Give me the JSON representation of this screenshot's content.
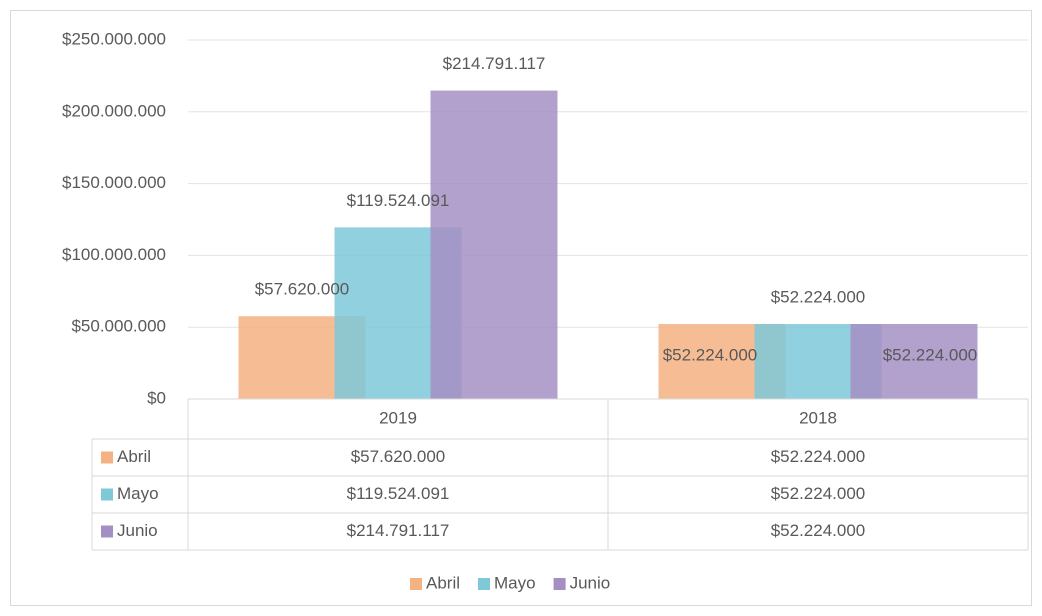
{
  "chart_data": {
    "type": "bar",
    "categories": [
      "2019",
      "2018"
    ],
    "series": [
      {
        "name": "Abril",
        "color": "#f4b183",
        "values": [
          57620000,
          52224000
        ],
        "value_labels": [
          "$57.620.000",
          "$52.224.000"
        ]
      },
      {
        "name": "Mayo",
        "color": "#7ec8d8",
        "values": [
          119524091,
          52224000
        ],
        "value_labels": [
          "$119.524.091",
          "$52.224.000"
        ]
      },
      {
        "name": "Junio",
        "color": "#a48fc4",
        "values": [
          214791117,
          52224000
        ],
        "value_labels": [
          "$214.791.117",
          "$52.224.000"
        ]
      }
    ],
    "ylim": [
      0,
      250000000
    ],
    "yticks": [
      {
        "value": 0,
        "label": "$0"
      },
      {
        "value": 50000000,
        "label": "$50.000.000"
      },
      {
        "value": 100000000,
        "label": "$100.000.000"
      },
      {
        "value": 150000000,
        "label": "$150.000.000"
      },
      {
        "value": 200000000,
        "label": "$200.000.000"
      },
      {
        "value": 250000000,
        "label": "$250.000.000"
      }
    ],
    "grid": true,
    "legend": "bottom",
    "data_table": true
  }
}
